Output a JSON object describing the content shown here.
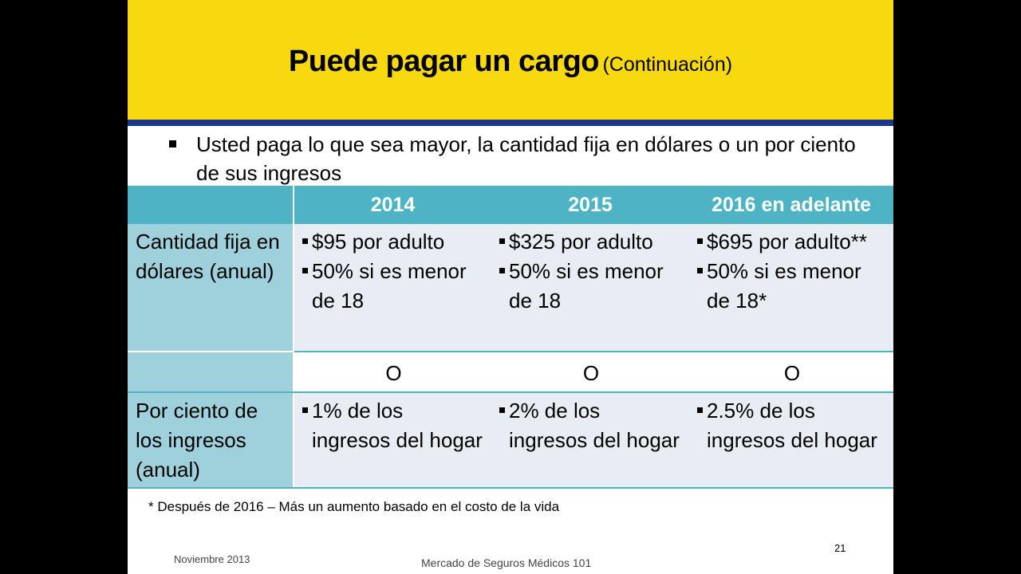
{
  "slide": {
    "title": "Puede pagar un cargo",
    "title_suffix": "(Continuación)",
    "bullet": "Usted paga lo que sea mayor, la cantidad fija en dólares o un por ciento de sus ingresos",
    "table": {
      "headers": [
        "",
        "2014",
        "2015",
        "2016 en adelante"
      ],
      "rows": [
        {
          "label": "Cantidad fija en dólares (anual)",
          "cells": [
            [
              "$95 por adulto",
              "50% si es menor de 18"
            ],
            [
              "$325 por adulto",
              "50% si es menor de 18"
            ],
            [
              "$695 por adulto**",
              "50% si es menor de 18*"
            ]
          ]
        },
        {
          "label": "",
          "cells": [
            "O",
            "O",
            "O"
          ]
        },
        {
          "label": "Por ciento de los ingresos (anual)",
          "cells": [
            [
              "1% de los ingresos del hogar"
            ],
            [
              "2% de los ingresos del hogar"
            ],
            [
              "2.5% de los ingresos del hogar"
            ]
          ]
        }
      ]
    },
    "footnote": "* Después de 2016 – Más un aumento basado en el costo de la vida",
    "footer_date": "Noviembre 2013",
    "footer_center": "Mercado de Seguros  Médicos 101",
    "page_number": "21"
  },
  "colors": {
    "header_yellow": "#f8d80e",
    "rule_blue": "#1d3a8a",
    "table_header_teal": "#4db3c5",
    "label_cell": "#9fd1dd",
    "value_cell": "#e7edf3"
  }
}
